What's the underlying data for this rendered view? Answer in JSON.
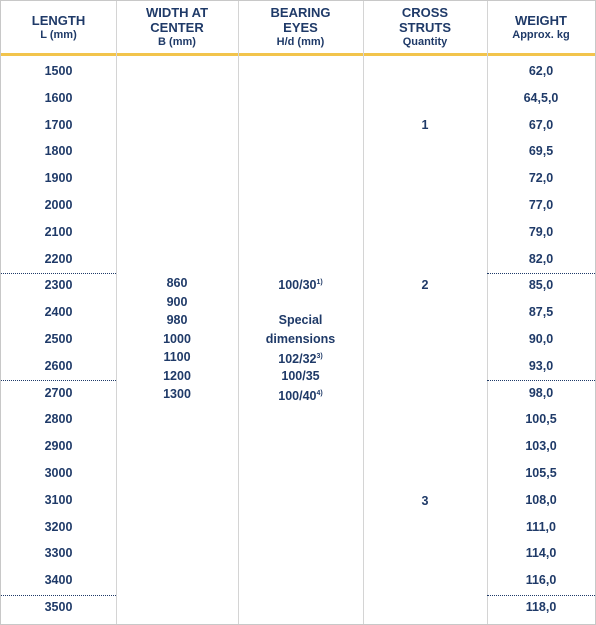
{
  "header": [
    {
      "title": "LENGTH",
      "subtitle": "L (mm)"
    },
    {
      "title": "WIDTH AT CENTER",
      "subtitle": "B (mm)"
    },
    {
      "title": "BEARING EYES",
      "subtitle": "H/d (mm)"
    },
    {
      "title": "CROSS STRUTS",
      "subtitle": "Quantity"
    },
    {
      "title": "WEIGHT",
      "subtitle": "Approx. kg"
    }
  ],
  "lengths": [
    "1500",
    "1600",
    "1700",
    "1800",
    "1900",
    "2000",
    "2100",
    "2200",
    "2300",
    "2400",
    "2500",
    "2600",
    "2700",
    "2800",
    "2900",
    "3000",
    "3100",
    "3200",
    "3300",
    "3400",
    "3500"
  ],
  "widths": [
    "860",
    "900",
    "980",
    "1000",
    "1100",
    "1200",
    "1300"
  ],
  "bearing_eyes": [
    {
      "text": "100/30",
      "note": "1)"
    },
    {
      "text": "Special"
    },
    {
      "text": "dimensions"
    },
    {
      "text": "102/32",
      "note": "3)"
    },
    {
      "text": "100/35"
    },
    {
      "text": "100/40",
      "note": "4)"
    }
  ],
  "cross_struts": [
    "1",
    "2",
    "3"
  ],
  "weights": [
    "62,0",
    "64,5,0",
    "67,0",
    "69,5",
    "72,0",
    "77,0",
    "79,0",
    "82,0",
    "85,0",
    "87,5",
    "90,0",
    "93,0",
    "98,0",
    "100,5",
    "103,0",
    "105,5",
    "108,0",
    "111,0",
    "114,0",
    "116,0",
    "118,0"
  ]
}
